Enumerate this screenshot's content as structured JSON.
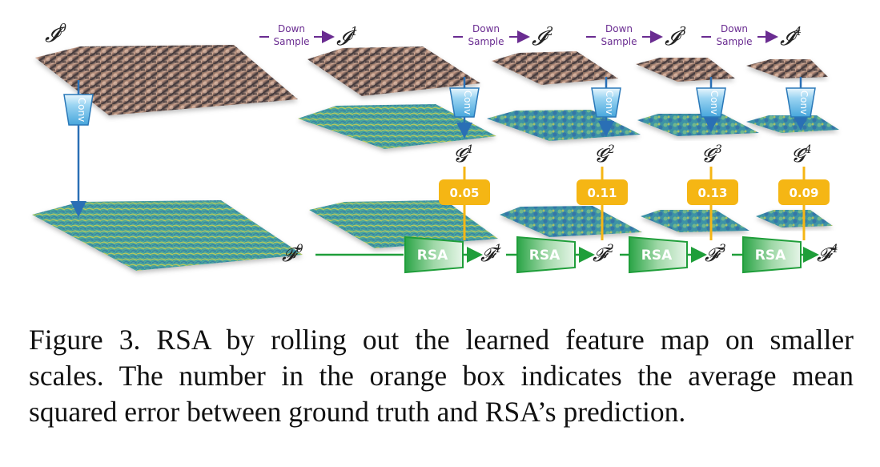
{
  "figure": {
    "image_labels": [
      "I0",
      "I1",
      "I2",
      "I3",
      "I4"
    ],
    "image_symbol": "𝓘",
    "feature_symbol": "𝓕",
    "g_symbol": "𝓖",
    "superscripts": [
      "0",
      "1",
      "2",
      "3",
      "4"
    ],
    "downsample_label_line1": "Down",
    "downsample_label_line2": "Sample",
    "conv_label": "Conv",
    "rsa_label": "RSA",
    "errors": [
      "0.05",
      "0.11",
      "0.13",
      "0.09"
    ],
    "colors": {
      "downsample": "#6a2c91",
      "arrow_blue": "#2a6fb5",
      "conv_fill": "#7cc6ee",
      "rsa_green": "#1f9e3a",
      "error_box": "#f5b614",
      "feature_teal": "#3f9ea3",
      "feature_yellow": "#d8cf4a"
    }
  },
  "caption": {
    "lines": [
      "Figure 3. RSA by rolling out the learned feature map on smaller",
      "scales. The number in the orange box indicates the average mean",
      "squared error between ground truth and RSA’s prediction."
    ]
  }
}
